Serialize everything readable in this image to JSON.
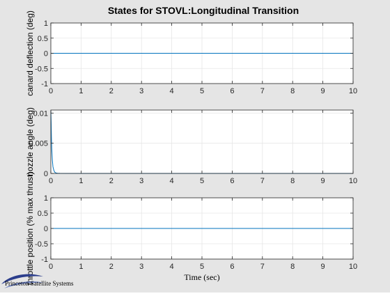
{
  "figure": {
    "title": "States for STOVL:Longitudinal Transition",
    "xlabel": "Time (sec)",
    "logo_text": "Princeton Satellite Systems",
    "background": "#e5e5e5",
    "axes_background": "#ffffff",
    "line_color": "#0072bd"
  },
  "chart_data": [
    {
      "type": "line",
      "ylabel": "canard deflection (deg)",
      "xlim": [
        0,
        10
      ],
      "ylim": [
        -1,
        1
      ],
      "xticks": [
        0,
        1,
        2,
        3,
        4,
        5,
        6,
        7,
        8,
        9,
        10
      ],
      "yticks": [
        -1,
        -0.5,
        0,
        0.5,
        1
      ],
      "ytick_labels": [
        "-1",
        "-0.5",
        "0",
        "0.5",
        "1"
      ],
      "grid": true,
      "series": [
        {
          "x": [
            0,
            10
          ],
          "y": [
            0,
            0
          ]
        }
      ]
    },
    {
      "type": "line",
      "ylabel": "nozzle angle (deg)",
      "xlim": [
        0,
        10
      ],
      "ylim": [
        0,
        0.0105
      ],
      "xticks": [
        0,
        1,
        2,
        3,
        4,
        5,
        6,
        7,
        8,
        9,
        10
      ],
      "yticks": [
        0,
        0.005,
        0.01
      ],
      "ytick_labels": [
        "0",
        "0.005",
        "0.01"
      ],
      "grid": true,
      "series": [
        {
          "x": [
            0,
            0.01,
            0.02,
            0.03,
            0.05,
            0.07,
            0.1,
            0.13,
            0.17,
            0.22,
            0.3,
            0.5,
            1,
            10
          ],
          "y": [
            0.0105,
            0.0085,
            0.006,
            0.0042,
            0.0022,
            0.0011,
            0.0005,
            0.0002,
            8e-05,
            3e-05,
            1e-05,
            0,
            0,
            0
          ]
        }
      ]
    },
    {
      "type": "line",
      "ylabel": "throttle position (% max thrust)",
      "xlim": [
        0,
        10
      ],
      "ylim": [
        -1,
        1
      ],
      "xticks": [
        0,
        1,
        2,
        3,
        4,
        5,
        6,
        7,
        8,
        9,
        10
      ],
      "yticks": [
        -1,
        -0.5,
        0,
        0.5,
        1
      ],
      "ytick_labels": [
        "-1",
        "-0.5",
        "0",
        "0.5",
        "1"
      ],
      "grid": true,
      "series": [
        {
          "x": [
            0,
            10
          ],
          "y": [
            0,
            0
          ]
        }
      ]
    }
  ]
}
